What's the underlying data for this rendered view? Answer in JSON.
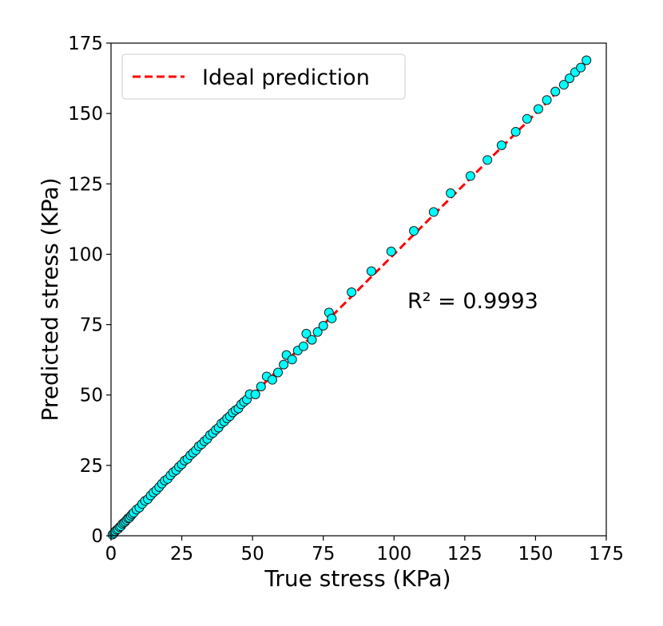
{
  "chart_data": {
    "type": "scatter",
    "xlabel": "True stress (KPa)",
    "ylabel": "Predicted stress (KPa)",
    "xlim": [
      0,
      175
    ],
    "ylim": [
      0,
      175
    ],
    "xticks": [
      "0",
      "25",
      "50",
      "75",
      "100",
      "125",
      "150",
      "175"
    ],
    "yticks": [
      "0",
      "25",
      "50",
      "75",
      "100",
      "125",
      "150",
      "175"
    ],
    "legend": {
      "label": "Ideal prediction",
      "placement": "top-left"
    },
    "annotation": "R² = 0.9993",
    "colors": {
      "points": "#00ffff",
      "point_edge": "#1a1a1a",
      "ideal_line": "#ff0000"
    },
    "ideal_line": {
      "x": [
        0,
        168
      ],
      "y": [
        0,
        168
      ]
    },
    "series": [
      {
        "name": "Predictions",
        "points": [
          [
            0.5,
            0.4
          ],
          [
            1,
            0.9
          ],
          [
            1.5,
            1.6
          ],
          [
            2,
            2.1
          ],
          [
            2.5,
            2.4
          ],
          [
            3,
            3.1
          ],
          [
            3.5,
            3.4
          ],
          [
            4,
            4.2
          ],
          [
            4.5,
            4.6
          ],
          [
            5,
            5.0
          ],
          [
            5.5,
            5.6
          ],
          [
            6,
            6.2
          ],
          [
            6.5,
            6.4
          ],
          [
            7,
            7.1
          ],
          [
            7.5,
            7.7
          ],
          [
            8,
            8.2
          ],
          [
            9,
            9.3
          ],
          [
            10,
            10.0
          ],
          [
            11,
            11.3
          ],
          [
            12,
            12.4
          ],
          [
            13,
            13.0
          ],
          [
            14,
            14.3
          ],
          [
            15,
            15.4
          ],
          [
            16,
            16.2
          ],
          [
            17,
            17.3
          ],
          [
            18,
            18.5
          ],
          [
            19,
            19.6
          ],
          [
            20,
            20.2
          ],
          [
            21,
            21.5
          ],
          [
            22,
            22.6
          ],
          [
            23,
            23.3
          ],
          [
            24,
            24.5
          ],
          [
            25,
            25.4
          ],
          [
            26,
            26.7
          ],
          [
            27,
            27.3
          ],
          [
            28,
            28.6
          ],
          [
            29,
            29.5
          ],
          [
            30,
            30.4
          ],
          [
            31,
            31.8
          ],
          [
            32,
            32.5
          ],
          [
            33,
            33.6
          ],
          [
            34,
            34.4
          ],
          [
            35,
            35.8
          ],
          [
            36,
            36.5
          ],
          [
            37,
            37.6
          ],
          [
            38,
            38.4
          ],
          [
            39,
            39.9
          ],
          [
            40,
            40.6
          ],
          [
            41,
            41.7
          ],
          [
            42,
            42.5
          ],
          [
            43,
            43.8
          ],
          [
            44,
            44.6
          ],
          [
            45,
            45.2
          ],
          [
            46,
            46.7
          ],
          [
            47,
            47.6
          ],
          [
            48,
            48.4
          ],
          [
            49,
            50.3
          ],
          [
            51,
            50.2
          ],
          [
            53,
            53.0
          ],
          [
            55,
            56.6
          ],
          [
            57,
            55.4
          ],
          [
            59,
            58.0
          ],
          [
            61,
            60.8
          ],
          [
            62,
            64.2
          ],
          [
            64,
            62.6
          ],
          [
            66,
            65.8
          ],
          [
            68,
            67.3
          ],
          [
            69,
            71.8
          ],
          [
            71,
            69.6
          ],
          [
            73,
            72.4
          ],
          [
            75,
            74.6
          ],
          [
            77,
            79.3
          ],
          [
            78,
            77.2
          ],
          [
            85,
            86.5
          ],
          [
            92,
            94.0
          ],
          [
            99,
            101.0
          ],
          [
            107,
            108.3
          ],
          [
            114,
            115.0
          ],
          [
            120,
            121.7
          ],
          [
            127,
            127.8
          ],
          [
            133,
            133.5
          ],
          [
            138,
            138.7
          ],
          [
            143,
            143.5
          ],
          [
            147,
            148.1
          ],
          [
            151,
            151.6
          ],
          [
            154,
            154.8
          ],
          [
            157,
            157.8
          ],
          [
            160,
            160.2
          ],
          [
            162,
            162.5
          ],
          [
            164,
            164.7
          ],
          [
            166,
            166.3
          ],
          [
            168,
            168.9
          ]
        ]
      }
    ]
  }
}
